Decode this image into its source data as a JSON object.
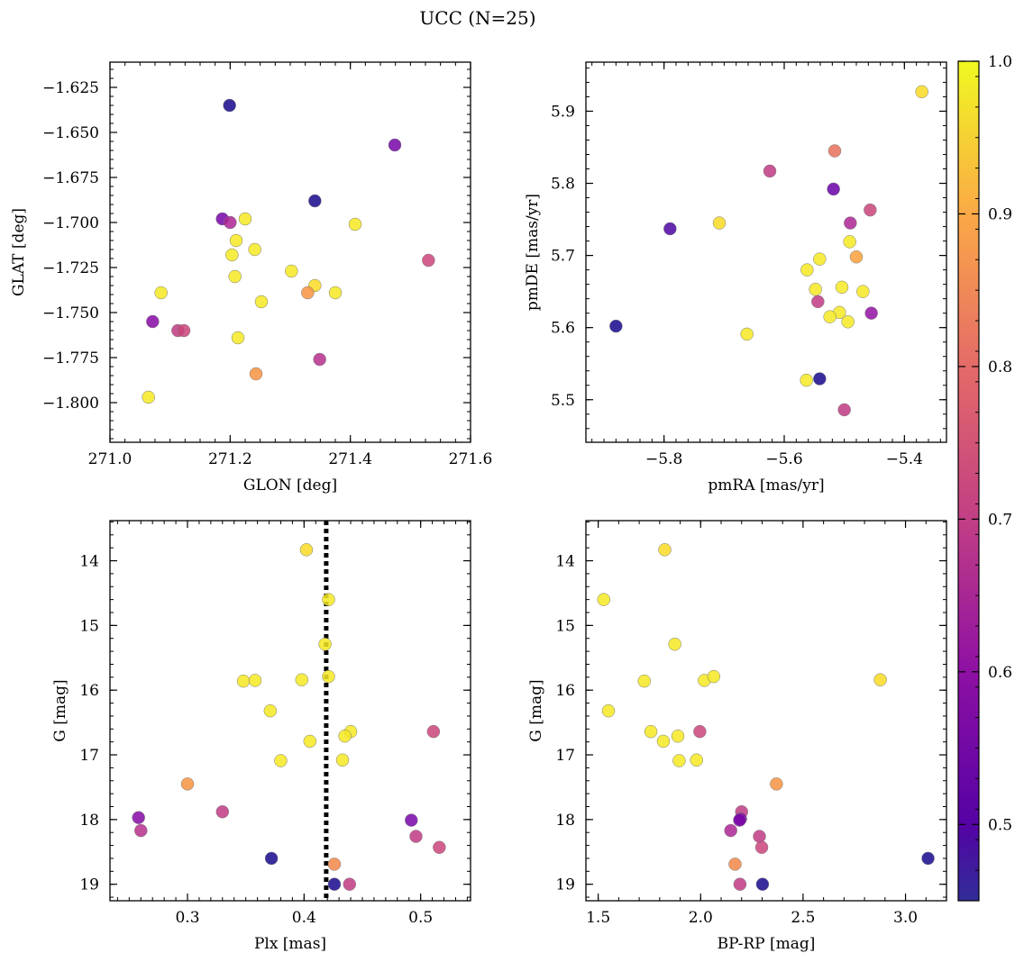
{
  "figure": {
    "title": "UCC (N=25)"
  },
  "colorbar": {
    "min": 0.45,
    "max": 1.0,
    "ticks": [
      0.5,
      0.6,
      0.7,
      0.8,
      0.9,
      1.0
    ],
    "tick_labels": [
      "0.5",
      "0.6",
      "0.7",
      "0.8",
      "0.9",
      "1.0"
    ],
    "colormap": "plasma"
  },
  "chart_data": [
    {
      "type": "scatter",
      "xlabel": "GLON [deg]",
      "ylabel": "GLAT [deg]",
      "xlim": [
        271.0,
        271.6
      ],
      "ylim": [
        -1.822,
        -1.611
      ],
      "xticks": [
        271.0,
        271.2,
        271.4,
        271.6
      ],
      "xtick_labels": [
        "271.0",
        "271.2",
        "271.4",
        "271.6"
      ],
      "yticks": [
        -1.625,
        -1.65,
        -1.675,
        -1.7,
        -1.725,
        -1.75,
        -1.775,
        -1.8
      ],
      "ytick_labels": [
        "−1.625",
        "−1.650",
        "−1.675",
        "−1.700",
        "−1.725",
        "−1.750",
        "−1.775",
        "−1.800"
      ],
      "points": [
        {
          "x": 271.199,
          "y": -1.635,
          "c": 0.46
        },
        {
          "x": 271.474,
          "y": -1.657,
          "c": 0.58
        },
        {
          "x": 271.341,
          "y": -1.688,
          "c": 0.46
        },
        {
          "x": 271.187,
          "y": -1.698,
          "c": 0.58
        },
        {
          "x": 271.2,
          "y": -1.7,
          "c": 0.66
        },
        {
          "x": 271.225,
          "y": -1.698,
          "c": 0.98
        },
        {
          "x": 271.408,
          "y": -1.701,
          "c": 0.98
        },
        {
          "x": 271.21,
          "y": -1.71,
          "c": 0.98
        },
        {
          "x": 271.241,
          "y": -1.715,
          "c": 0.98
        },
        {
          "x": 271.203,
          "y": -1.718,
          "c": 0.98
        },
        {
          "x": 271.53,
          "y": -1.721,
          "c": 0.72
        },
        {
          "x": 271.302,
          "y": -1.727,
          "c": 0.98
        },
        {
          "x": 271.208,
          "y": -1.73,
          "c": 0.98
        },
        {
          "x": 271.341,
          "y": -1.735,
          "c": 0.96
        },
        {
          "x": 271.329,
          "y": -1.739,
          "c": 0.86
        },
        {
          "x": 271.085,
          "y": -1.739,
          "c": 0.98
        },
        {
          "x": 271.375,
          "y": -1.739,
          "c": 0.98
        },
        {
          "x": 271.252,
          "y": -1.744,
          "c": 0.98
        },
        {
          "x": 271.071,
          "y": -1.755,
          "c": 0.6
        },
        {
          "x": 271.113,
          "y": -1.76,
          "c": 0.7
        },
        {
          "x": 271.123,
          "y": -1.76,
          "c": 0.72
        },
        {
          "x": 271.213,
          "y": -1.764,
          "c": 0.98
        },
        {
          "x": 271.349,
          "y": -1.776,
          "c": 0.68
        },
        {
          "x": 271.243,
          "y": -1.784,
          "c": 0.86
        },
        {
          "x": 271.064,
          "y": -1.797,
          "c": 0.98
        }
      ]
    },
    {
      "type": "scatter",
      "xlabel": "pmRA [mas/yr]",
      "ylabel": "pmDE [mas/yr]",
      "xlim": [
        -5.93,
        -5.33
      ],
      "ylim": [
        5.441,
        5.968
      ],
      "xticks": [
        -5.8,
        -5.6,
        -5.4
      ],
      "xtick_labels": [
        "−5.8",
        "−5.6",
        "−5.4"
      ],
      "yticks": [
        5.5,
        5.6,
        5.7,
        5.8,
        5.9
      ],
      "ytick_labels": [
        "5.5",
        "5.6",
        "5.7",
        "5.8",
        "5.9"
      ],
      "points": [
        {
          "x": -5.371,
          "y": 5.927,
          "c": 0.96
        },
        {
          "x": -5.516,
          "y": 5.845,
          "c": 0.8
        },
        {
          "x": -5.624,
          "y": 5.817,
          "c": 0.7
        },
        {
          "x": -5.518,
          "y": 5.792,
          "c": 0.56
        },
        {
          "x": -5.457,
          "y": 5.763,
          "c": 0.72
        },
        {
          "x": -5.708,
          "y": 5.745,
          "c": 0.96
        },
        {
          "x": -5.49,
          "y": 5.745,
          "c": 0.66
        },
        {
          "x": -5.79,
          "y": 5.737,
          "c": 0.52
        },
        {
          "x": -5.491,
          "y": 5.719,
          "c": 0.98
        },
        {
          "x": -5.48,
          "y": 5.698,
          "c": 0.88
        },
        {
          "x": -5.541,
          "y": 5.695,
          "c": 0.98
        },
        {
          "x": -5.562,
          "y": 5.68,
          "c": 0.98
        },
        {
          "x": -5.504,
          "y": 5.656,
          "c": 0.98
        },
        {
          "x": -5.548,
          "y": 5.653,
          "c": 0.98
        },
        {
          "x": -5.469,
          "y": 5.65,
          "c": 0.98
        },
        {
          "x": -5.544,
          "y": 5.636,
          "c": 0.7
        },
        {
          "x": -5.508,
          "y": 5.621,
          "c": 0.98
        },
        {
          "x": -5.455,
          "y": 5.62,
          "c": 0.62
        },
        {
          "x": -5.524,
          "y": 5.615,
          "c": 0.98
        },
        {
          "x": -5.494,
          "y": 5.608,
          "c": 0.98
        },
        {
          "x": -5.88,
          "y": 5.602,
          "c": 0.46
        },
        {
          "x": -5.662,
          "y": 5.591,
          "c": 0.98
        },
        {
          "x": -5.563,
          "y": 5.527,
          "c": 0.98
        },
        {
          "x": -5.541,
          "y": 5.529,
          "c": 0.46
        },
        {
          "x": -5.5,
          "y": 5.486,
          "c": 0.7
        }
      ]
    },
    {
      "type": "scatter",
      "xlabel": "Plx [mas]",
      "ylabel": "G [mag]",
      "xlim": [
        0.2335,
        0.5428
      ],
      "ylim": [
        19.255,
        13.38
      ],
      "y_inverted": true,
      "xticks": [
        0.3,
        0.4,
        0.5
      ],
      "xtick_labels": [
        "0.3",
        "0.4",
        "0.5"
      ],
      "yticks": [
        14,
        15,
        16,
        17,
        18,
        19
      ],
      "ytick_labels": [
        "14",
        "15",
        "16",
        "17",
        "18",
        "19"
      ],
      "reference_line": {
        "x": 0.419,
        "style": "dotted"
      },
      "points": [
        {
          "x": 0.402,
          "y": 13.83,
          "c": 0.96
        },
        {
          "x": 0.421,
          "y": 14.6,
          "c": 0.98
        },
        {
          "x": 0.418,
          "y": 15.29,
          "c": 0.98
        },
        {
          "x": 0.348,
          "y": 15.86,
          "c": 0.98
        },
        {
          "x": 0.358,
          "y": 15.85,
          "c": 0.98
        },
        {
          "x": 0.398,
          "y": 15.84,
          "c": 0.98
        },
        {
          "x": 0.421,
          "y": 15.79,
          "c": 0.98
        },
        {
          "x": 0.371,
          "y": 16.32,
          "c": 0.98
        },
        {
          "x": 0.44,
          "y": 16.64,
          "c": 0.98
        },
        {
          "x": 0.435,
          "y": 16.71,
          "c": 0.98
        },
        {
          "x": 0.511,
          "y": 16.64,
          "c": 0.72
        },
        {
          "x": 0.405,
          "y": 16.79,
          "c": 0.98
        },
        {
          "x": 0.38,
          "y": 17.09,
          "c": 0.98
        },
        {
          "x": 0.433,
          "y": 17.08,
          "c": 0.98
        },
        {
          "x": 0.3,
          "y": 17.45,
          "c": 0.86
        },
        {
          "x": 0.33,
          "y": 17.88,
          "c": 0.7
        },
        {
          "x": 0.258,
          "y": 17.97,
          "c": 0.6
        },
        {
          "x": 0.492,
          "y": 18.01,
          "c": 0.58
        },
        {
          "x": 0.26,
          "y": 18.17,
          "c": 0.68
        },
        {
          "x": 0.496,
          "y": 18.26,
          "c": 0.7
        },
        {
          "x": 0.516,
          "y": 18.43,
          "c": 0.72
        },
        {
          "x": 0.372,
          "y": 18.6,
          "c": 0.46
        },
        {
          "x": 0.426,
          "y": 18.69,
          "c": 0.84
        },
        {
          "x": 0.426,
          "y": 19.0,
          "c": 0.46
        },
        {
          "x": 0.439,
          "y": 19.0,
          "c": 0.7
        }
      ]
    },
    {
      "type": "scatter",
      "xlabel": "BP-RP [mag]",
      "ylabel": "G [mag]",
      "xlim": [
        1.44,
        3.2
      ],
      "ylim": [
        19.255,
        13.38
      ],
      "y_inverted": true,
      "xticks": [
        1.5,
        2.0,
        2.5,
        3.0
      ],
      "xtick_labels": [
        "1.5",
        "2.0",
        "2.5",
        "3.0"
      ],
      "yticks": [
        14,
        15,
        16,
        17,
        18,
        19
      ],
      "ytick_labels": [
        "14",
        "15",
        "16",
        "17",
        "18",
        "19"
      ],
      "points": [
        {
          "x": 1.825,
          "y": 13.83,
          "c": 0.96
        },
        {
          "x": 1.527,
          "y": 14.6,
          "c": 0.98
        },
        {
          "x": 1.874,
          "y": 15.29,
          "c": 0.98
        },
        {
          "x": 1.725,
          "y": 15.86,
          "c": 0.98
        },
        {
          "x": 2.018,
          "y": 15.85,
          "c": 0.98
        },
        {
          "x": 2.064,
          "y": 15.79,
          "c": 0.98
        },
        {
          "x": 2.877,
          "y": 15.84,
          "c": 0.96
        },
        {
          "x": 1.55,
          "y": 16.32,
          "c": 0.98
        },
        {
          "x": 1.757,
          "y": 16.64,
          "c": 0.98
        },
        {
          "x": 1.996,
          "y": 16.64,
          "c": 0.72
        },
        {
          "x": 1.889,
          "y": 16.71,
          "c": 0.98
        },
        {
          "x": 1.818,
          "y": 16.79,
          "c": 0.98
        },
        {
          "x": 1.895,
          "y": 17.09,
          "c": 0.98
        },
        {
          "x": 1.98,
          "y": 17.08,
          "c": 0.98
        },
        {
          "x": 2.37,
          "y": 17.45,
          "c": 0.86
        },
        {
          "x": 2.2,
          "y": 17.88,
          "c": 0.7
        },
        {
          "x": 2.195,
          "y": 17.99,
          "c": 0.6
        },
        {
          "x": 2.19,
          "y": 18.01,
          "c": 0.58
        },
        {
          "x": 2.147,
          "y": 18.17,
          "c": 0.66
        },
        {
          "x": 2.287,
          "y": 18.26,
          "c": 0.7
        },
        {
          "x": 2.298,
          "y": 18.43,
          "c": 0.72
        },
        {
          "x": 2.168,
          "y": 18.69,
          "c": 0.84
        },
        {
          "x": 3.11,
          "y": 18.6,
          "c": 0.46
        },
        {
          "x": 2.192,
          "y": 19.0,
          "c": 0.7
        },
        {
          "x": 2.302,
          "y": 19.0,
          "c": 0.46
        }
      ]
    }
  ]
}
